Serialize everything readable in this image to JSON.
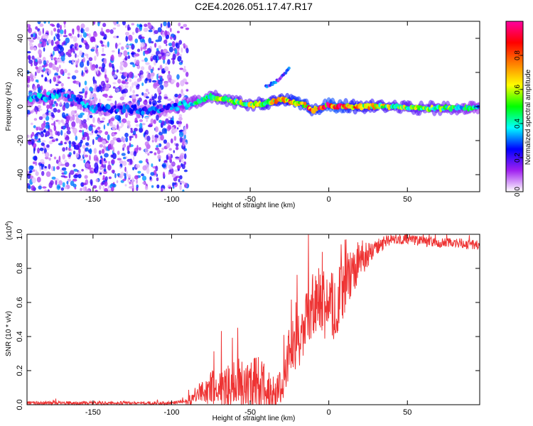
{
  "title": "C2E4.2026.051.17.47.R17",
  "chart_data": [
    {
      "type": "heatmap",
      "name": "spectrogram",
      "xlabel": "Height of straight line (km)",
      "ylabel": "Frequency (Hz)",
      "xlim": [
        -192,
        96
      ],
      "ylim": [
        -50,
        50
      ],
      "xticks": [
        -150,
        -100,
        -50,
        0,
        50
      ],
      "yticks": [
        -40,
        -20,
        0,
        20,
        40
      ],
      "colorbar": {
        "label": "Normalized spectral amplitude",
        "range": [
          0.0,
          1.0
        ],
        "ticks": [
          0.0,
          0.2,
          0.4,
          0.6,
          0.8
        ],
        "tick_labels": [
          "0.0",
          "0.2",
          "0.4",
          "0.6",
          "0.8"
        ],
        "colors": [
          "#ffffff",
          "#a020f0",
          "#0000ff",
          "#00ffff",
          "#00ff00",
          "#ffff00",
          "#ff8000",
          "#ff0000",
          "#ff00a0"
        ]
      },
      "noise_region_xmax": -90,
      "ridge": {
        "x": [
          -192,
          -180,
          -170,
          -160,
          -150,
          -140,
          -130,
          -120,
          -110,
          -100,
          -90,
          -80,
          -75,
          -70,
          -60,
          -50,
          -40,
          -30,
          -20,
          -15,
          -10,
          -5,
          0,
          5,
          10,
          20,
          40,
          60,
          80,
          96
        ],
        "freq": [
          4,
          6,
          8,
          3,
          -1,
          -2,
          -1,
          -2,
          -2,
          -1,
          1,
          4,
          6,
          5,
          3,
          1,
          2,
          4,
          2,
          1,
          -2,
          -1,
          1,
          0,
          0,
          0,
          0,
          -1,
          -1,
          -1
        ],
        "amplitude": [
          0.35,
          0.4,
          0.35,
          0.35,
          0.35,
          0.3,
          0.3,
          0.3,
          0.3,
          0.35,
          0.45,
          0.5,
          0.55,
          0.6,
          0.6,
          0.65,
          0.7,
          0.8,
          0.9,
          0.9,
          0.85,
          0.9,
          0.95,
          0.95,
          0.9,
          0.75,
          0.65,
          0.6,
          0.55,
          0.45
        ]
      },
      "secondary_branch": {
        "x": [
          -40,
          -35,
          -30,
          -25
        ],
        "freq": [
          12,
          14,
          17,
          23
        ]
      }
    },
    {
      "type": "line",
      "name": "snr",
      "xlabel": "Height of straight line (km)",
      "ylabel": "SNR (10 * v/v)",
      "scale_label": "(x10",
      "scale_exponent": "4",
      "scale_suffix": ")",
      "color": "#ee3333",
      "xlim": [
        -192,
        96
      ],
      "ylim": [
        0,
        1.0
      ],
      "xticks": [
        -150,
        -100,
        -50,
        0,
        50
      ],
      "yticks": [
        0.0,
        0.2,
        0.4,
        0.6,
        0.8,
        1.0
      ],
      "ytick_labels": [
        "0.0",
        "0.2",
        "0.4",
        "0.6",
        "0.8",
        "1.0"
      ],
      "envelope": {
        "x": [
          -192,
          -100,
          -90,
          -85,
          -80,
          -75,
          -70,
          -65,
          -60,
          -55,
          -50,
          -45,
          -40,
          -35,
          -30,
          -25,
          -20,
          -15,
          -10,
          -5,
          0,
          5,
          10,
          15,
          20,
          25,
          30,
          35,
          40,
          50,
          60,
          70,
          80,
          90,
          96
        ],
        "y": [
          0.01,
          0.01,
          0.02,
          0.05,
          0.08,
          0.1,
          0.09,
          0.1,
          0.12,
          0.13,
          0.12,
          0.11,
          0.1,
          0.07,
          0.1,
          0.32,
          0.38,
          0.45,
          0.58,
          0.62,
          0.55,
          0.6,
          0.7,
          0.78,
          0.85,
          0.88,
          0.92,
          0.95,
          0.97,
          0.97,
          0.96,
          0.95,
          0.95,
          0.94,
          0.94
        ]
      },
      "spread": {
        "x": [
          -192,
          -92,
          -85,
          -75,
          -60,
          -45,
          -30,
          -25,
          -10,
          0,
          10,
          20,
          30,
          40,
          96
        ],
        "y": [
          0.01,
          0.01,
          0.05,
          0.1,
          0.15,
          0.18,
          0.1,
          0.15,
          0.2,
          0.22,
          0.18,
          0.1,
          0.05,
          0.03,
          0.03
        ]
      }
    }
  ]
}
